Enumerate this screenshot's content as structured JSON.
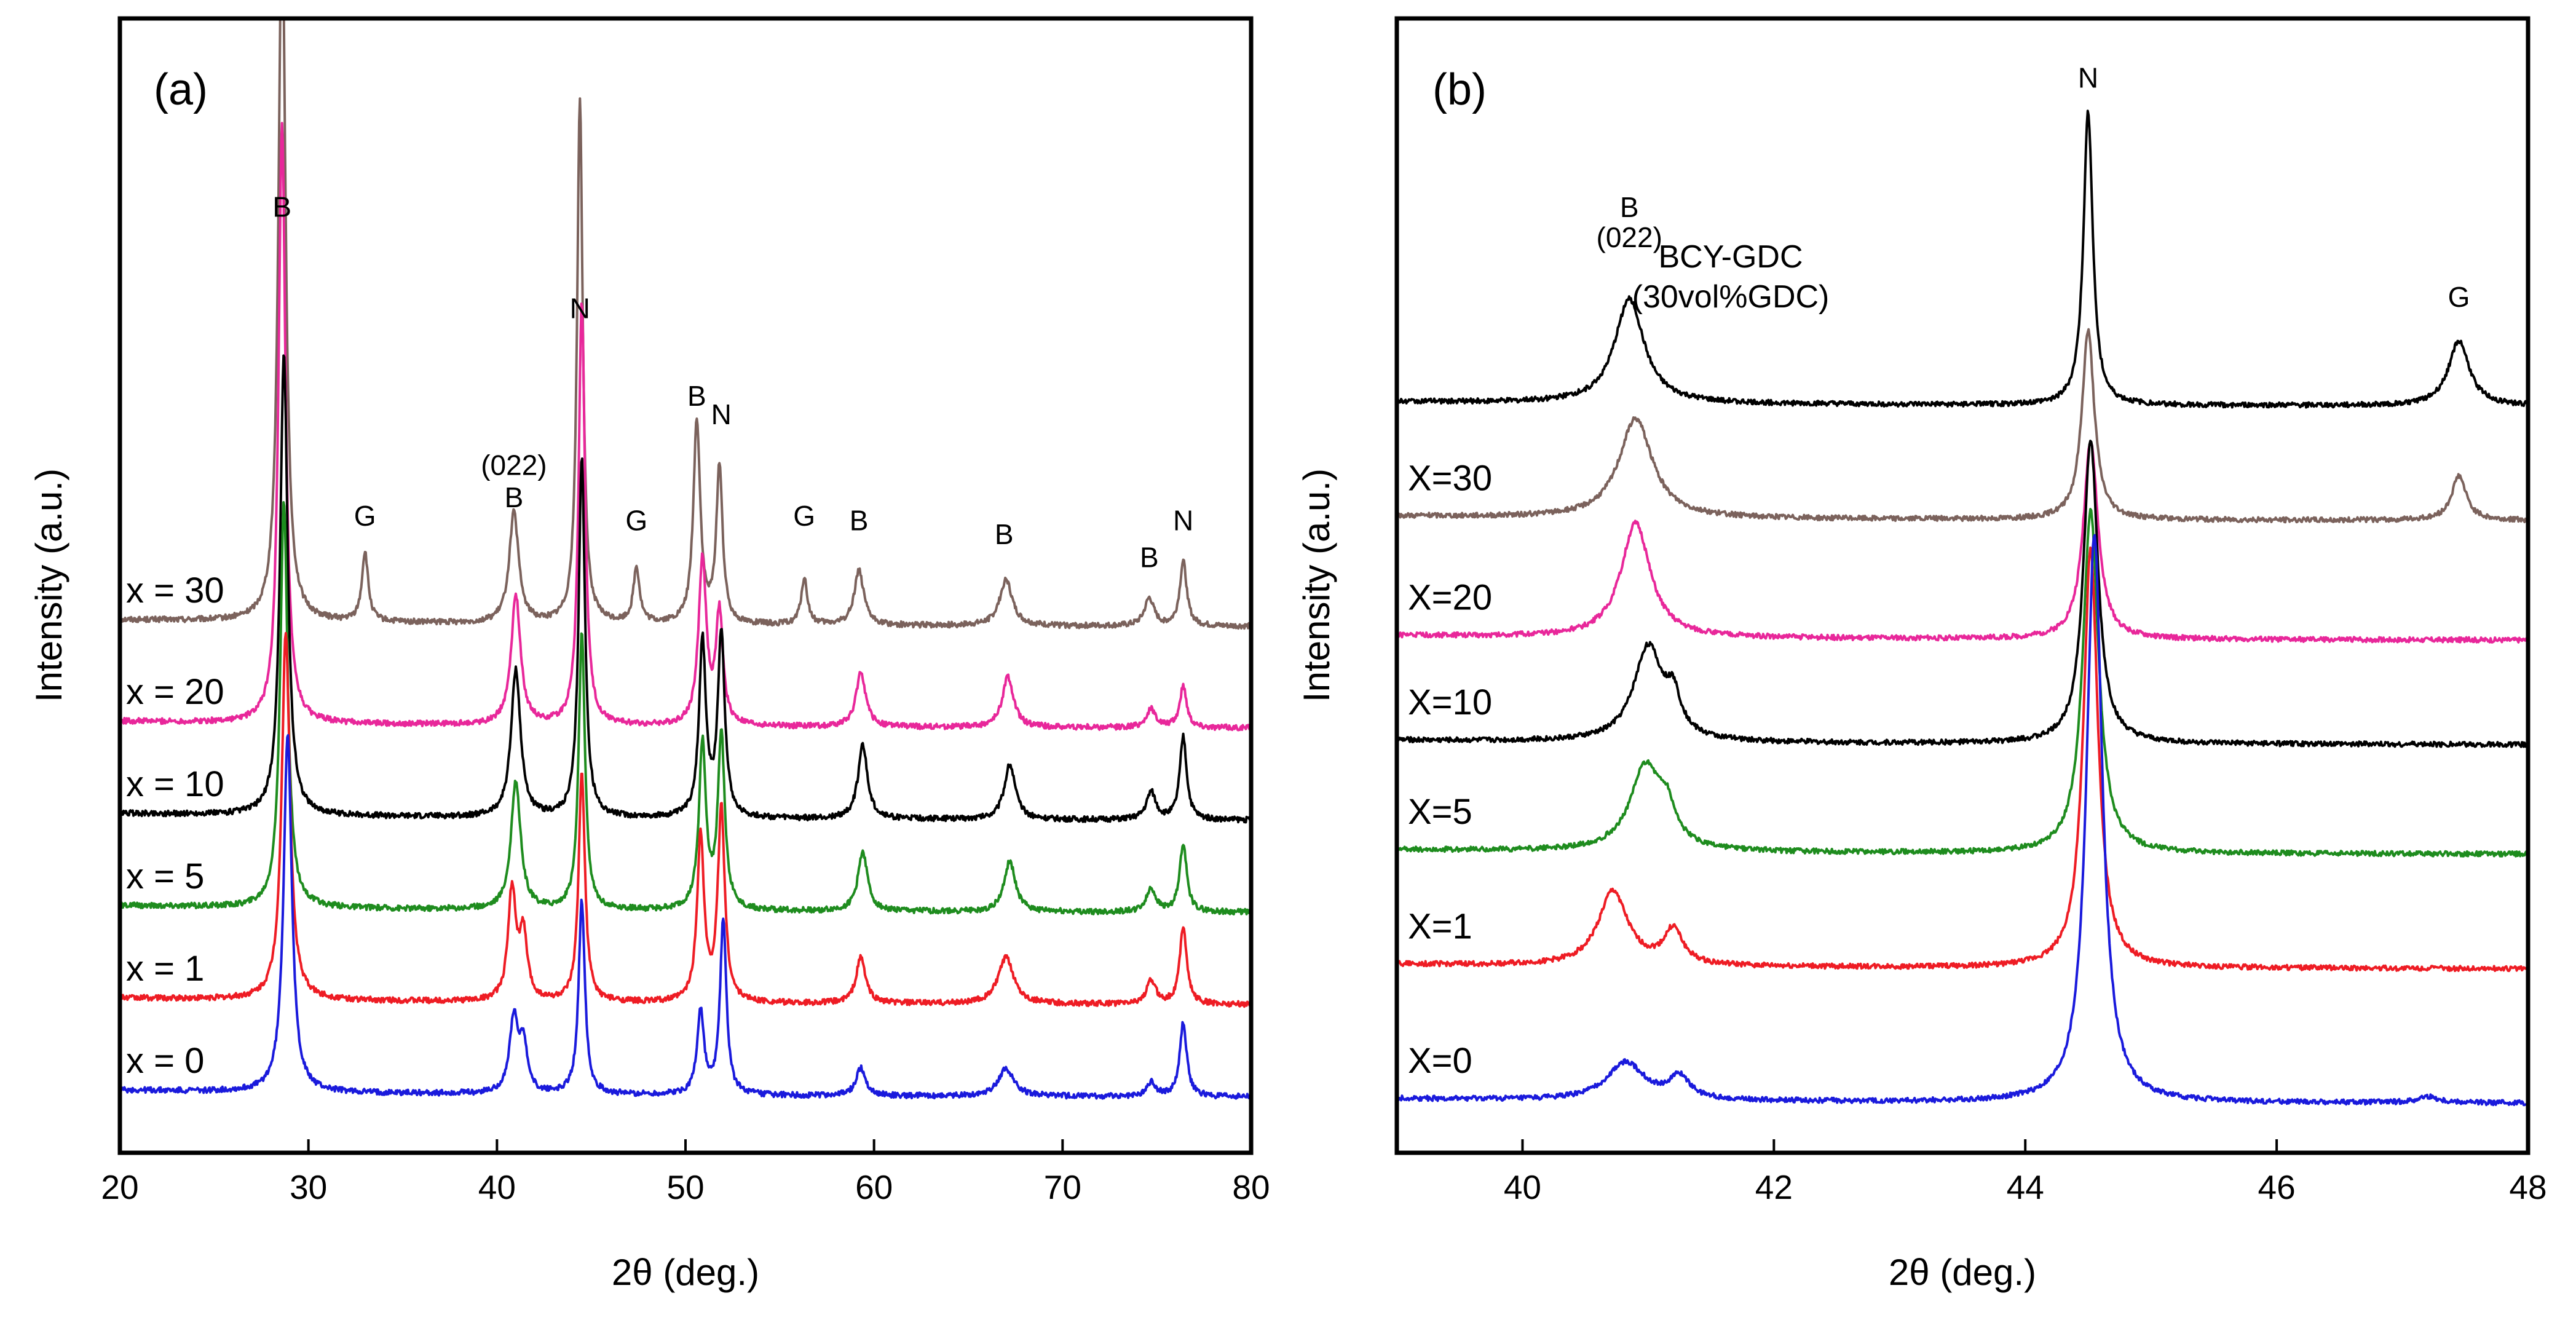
{
  "chart_data": [
    {
      "type": "line",
      "panel_label": "(a)",
      "xlabel": "2θ (deg.)",
      "ylabel": "Intensity (a.u.)",
      "xlim": [
        20,
        80
      ],
      "xticks": [
        "20",
        "30",
        "40",
        "50",
        "60",
        "70",
        "80"
      ],
      "series": [
        {
          "name": "x = 30",
          "color": "#7b625c",
          "baseline": 5.1,
          "amp": 1.0,
          "peaks": [
            [
              28.6,
              7.9,
              0.22
            ],
            [
              33.0,
              0.75,
              0.2
            ],
            [
              40.9,
              1.2,
              0.3
            ],
            [
              44.4,
              5.7,
              0.18
            ],
            [
              47.4,
              0.6,
              0.2
            ],
            [
              50.6,
              2.2,
              0.22
            ],
            [
              51.8,
              1.7,
              0.2
            ],
            [
              56.3,
              0.5,
              0.2
            ],
            [
              59.2,
              0.6,
              0.3
            ],
            [
              67.0,
              0.5,
              0.4
            ],
            [
              74.6,
              0.3,
              0.3
            ],
            [
              76.4,
              0.7,
              0.22
            ]
          ]
        },
        {
          "name": "x = 20",
          "color": "#e8279a",
          "baseline": 4.0,
          "amp": 1.0,
          "peaks": [
            [
              28.6,
              6.5,
              0.22
            ],
            [
              41.0,
              1.4,
              0.3
            ],
            [
              44.5,
              4.6,
              0.2
            ],
            [
              50.9,
              1.8,
              0.25
            ],
            [
              51.8,
              1.2,
              0.22
            ],
            [
              59.3,
              0.6,
              0.3
            ],
            [
              67.1,
              0.55,
              0.35
            ],
            [
              74.7,
              0.2,
              0.3
            ],
            [
              76.4,
              0.45,
              0.22
            ]
          ]
        },
        {
          "name": "x = 10",
          "color": "#000000",
          "baseline": 3.0,
          "amp": 1.0,
          "peaks": [
            [
              28.7,
              5.0,
              0.24
            ],
            [
              41.0,
              1.6,
              0.3
            ],
            [
              44.5,
              3.9,
              0.2
            ],
            [
              50.9,
              1.9,
              0.22
            ],
            [
              51.9,
              2.0,
              0.22
            ],
            [
              59.4,
              0.8,
              0.3
            ],
            [
              67.2,
              0.6,
              0.35
            ],
            [
              74.7,
              0.3,
              0.3
            ],
            [
              76.4,
              0.9,
              0.22
            ]
          ]
        },
        {
          "name": "x = 5",
          "color": "#1e8c1e",
          "baseline": 2.0,
          "amp": 1.0,
          "peaks": [
            [
              28.7,
              4.4,
              0.24
            ],
            [
              41.0,
              1.4,
              0.3
            ],
            [
              44.5,
              3.0,
              0.2
            ],
            [
              50.9,
              1.8,
              0.22
            ],
            [
              51.9,
              1.9,
              0.22
            ],
            [
              59.4,
              0.65,
              0.3
            ],
            [
              67.2,
              0.55,
              0.35
            ],
            [
              74.7,
              0.25,
              0.3
            ],
            [
              76.4,
              0.75,
              0.22
            ]
          ]
        },
        {
          "name": "x = 1",
          "color": "#ee1c24",
          "baseline": 1.0,
          "amp": 1.0,
          "peaks": [
            [
              28.8,
              4.0,
              0.26
            ],
            [
              40.8,
              1.2,
              0.25
            ],
            [
              41.4,
              0.7,
              0.25
            ],
            [
              44.5,
              2.5,
              0.2
            ],
            [
              50.8,
              1.8,
              0.22
            ],
            [
              51.9,
              2.1,
              0.22
            ],
            [
              59.3,
              0.5,
              0.3
            ],
            [
              67.0,
              0.5,
              0.5
            ],
            [
              74.7,
              0.25,
              0.3
            ],
            [
              76.4,
              0.85,
              0.22
            ]
          ]
        },
        {
          "name": "x = 0",
          "color": "#1a1adc",
          "baseline": 0.0,
          "amp": 1.0,
          "peaks": [
            [
              28.9,
              3.9,
              0.26
            ],
            [
              40.9,
              0.8,
              0.28
            ],
            [
              41.4,
              0.5,
              0.25
            ],
            [
              44.5,
              2.1,
              0.2
            ],
            [
              50.8,
              0.9,
              0.22
            ],
            [
              52.0,
              1.9,
              0.2
            ],
            [
              59.3,
              0.3,
              0.3
            ],
            [
              67.0,
              0.3,
              0.5
            ],
            [
              74.7,
              0.15,
              0.3
            ],
            [
              76.4,
              0.8,
              0.22
            ]
          ]
        }
      ],
      "peak_labels": [
        {
          "text": "B",
          "x": 28.6,
          "y": 9.55
        },
        {
          "text": "N",
          "x": 44.4,
          "y": 8.45
        },
        {
          "text": "(022)",
          "x": 40.9,
          "y": 6.75
        },
        {
          "text": "B",
          "x": 40.9,
          "y": 6.4
        },
        {
          "text": "G",
          "x": 33.0,
          "y": 6.2
        },
        {
          "text": "G",
          "x": 47.4,
          "y": 6.15
        },
        {
          "text": "B",
          "x": 50.6,
          "y": 7.5
        },
        {
          "text": "N",
          "x": 51.9,
          "y": 7.3
        },
        {
          "text": "G",
          "x": 56.3,
          "y": 6.2
        },
        {
          "text": "B",
          "x": 59.2,
          "y": 6.15
        },
        {
          "text": "B",
          "x": 66.9,
          "y": 6.0
        },
        {
          "text": "B",
          "x": 74.6,
          "y": 5.75
        },
        {
          "text": "N",
          "x": 76.4,
          "y": 6.15
        }
      ]
    },
    {
      "type": "line",
      "panel_label": "(b)",
      "xlabel": "2θ (deg.)",
      "ylabel": "Intensity (a.u.)",
      "xlim": [
        39,
        48
      ],
      "xticks": [
        "40",
        "42",
        "44",
        "46",
        "48"
      ],
      "series": [
        {
          "name": "BCY-GDC (30vol%GDC)",
          "color": "#000000",
          "baseline": 7.0,
          "amp": 1.0,
          "peaks": [
            [
              40.85,
              1.05,
              0.14
            ],
            [
              44.5,
              2.95,
              0.045
            ],
            [
              47.45,
              0.65,
              0.1
            ]
          ]
        },
        {
          "name": "X=30",
          "color": "#7b625c",
          "baseline": 5.85,
          "amp": 1.0,
          "peaks": [
            [
              40.9,
              1.0,
              0.16
            ],
            [
              44.5,
              1.9,
              0.06
            ],
            [
              47.45,
              0.45,
              0.07
            ]
          ]
        },
        {
          "name": "X=20",
          "color": "#e8279a",
          "baseline": 4.65,
          "amp": 1.0,
          "peaks": [
            [
              40.9,
              1.15,
              0.14
            ],
            [
              44.52,
              2.0,
              0.07
            ]
          ]
        },
        {
          "name": "X=10",
          "color": "#000000",
          "baseline": 3.6,
          "amp": 1.0,
          "peaks": [
            [
              41.0,
              0.95,
              0.14
            ],
            [
              41.2,
              0.35,
              0.07
            ],
            [
              44.52,
              3.05,
              0.07
            ]
          ]
        },
        {
          "name": "X=5",
          "color": "#1e8c1e",
          "baseline": 2.5,
          "amp": 1.0,
          "peaks": [
            [
              40.98,
              0.85,
              0.15
            ],
            [
              41.15,
              0.3,
              0.08
            ],
            [
              44.52,
              3.45,
              0.075
            ]
          ]
        },
        {
          "name": "X=1",
          "color": "#ee1c24",
          "baseline": 1.35,
          "amp": 1.0,
          "peaks": [
            [
              40.72,
              0.75,
              0.14
            ],
            [
              41.2,
              0.35,
              0.09
            ],
            [
              44.52,
              4.2,
              0.07
            ]
          ]
        },
        {
          "name": "X=0",
          "color": "#1a1adc",
          "baseline": 0.0,
          "amp": 1.0,
          "peaks": [
            [
              40.82,
              0.38,
              0.18
            ],
            [
              41.25,
              0.22,
              0.1
            ],
            [
              44.55,
              5.7,
              0.075
            ],
            [
              47.2,
              0.06,
              0.1
            ]
          ]
        }
      ],
      "peak_labels": [
        {
          "text": "N",
          "x": 44.5,
          "y": 10.2
        },
        {
          "text": "B",
          "x": 40.85,
          "y": 8.9
        },
        {
          "text": "(022)",
          "x": 40.85,
          "y": 8.6
        },
        {
          "text": "G",
          "x": 47.45,
          "y": 8.0
        }
      ],
      "annotation": [
        "BCY-GDC",
        "(30vol%GDC)"
      ]
    }
  ]
}
